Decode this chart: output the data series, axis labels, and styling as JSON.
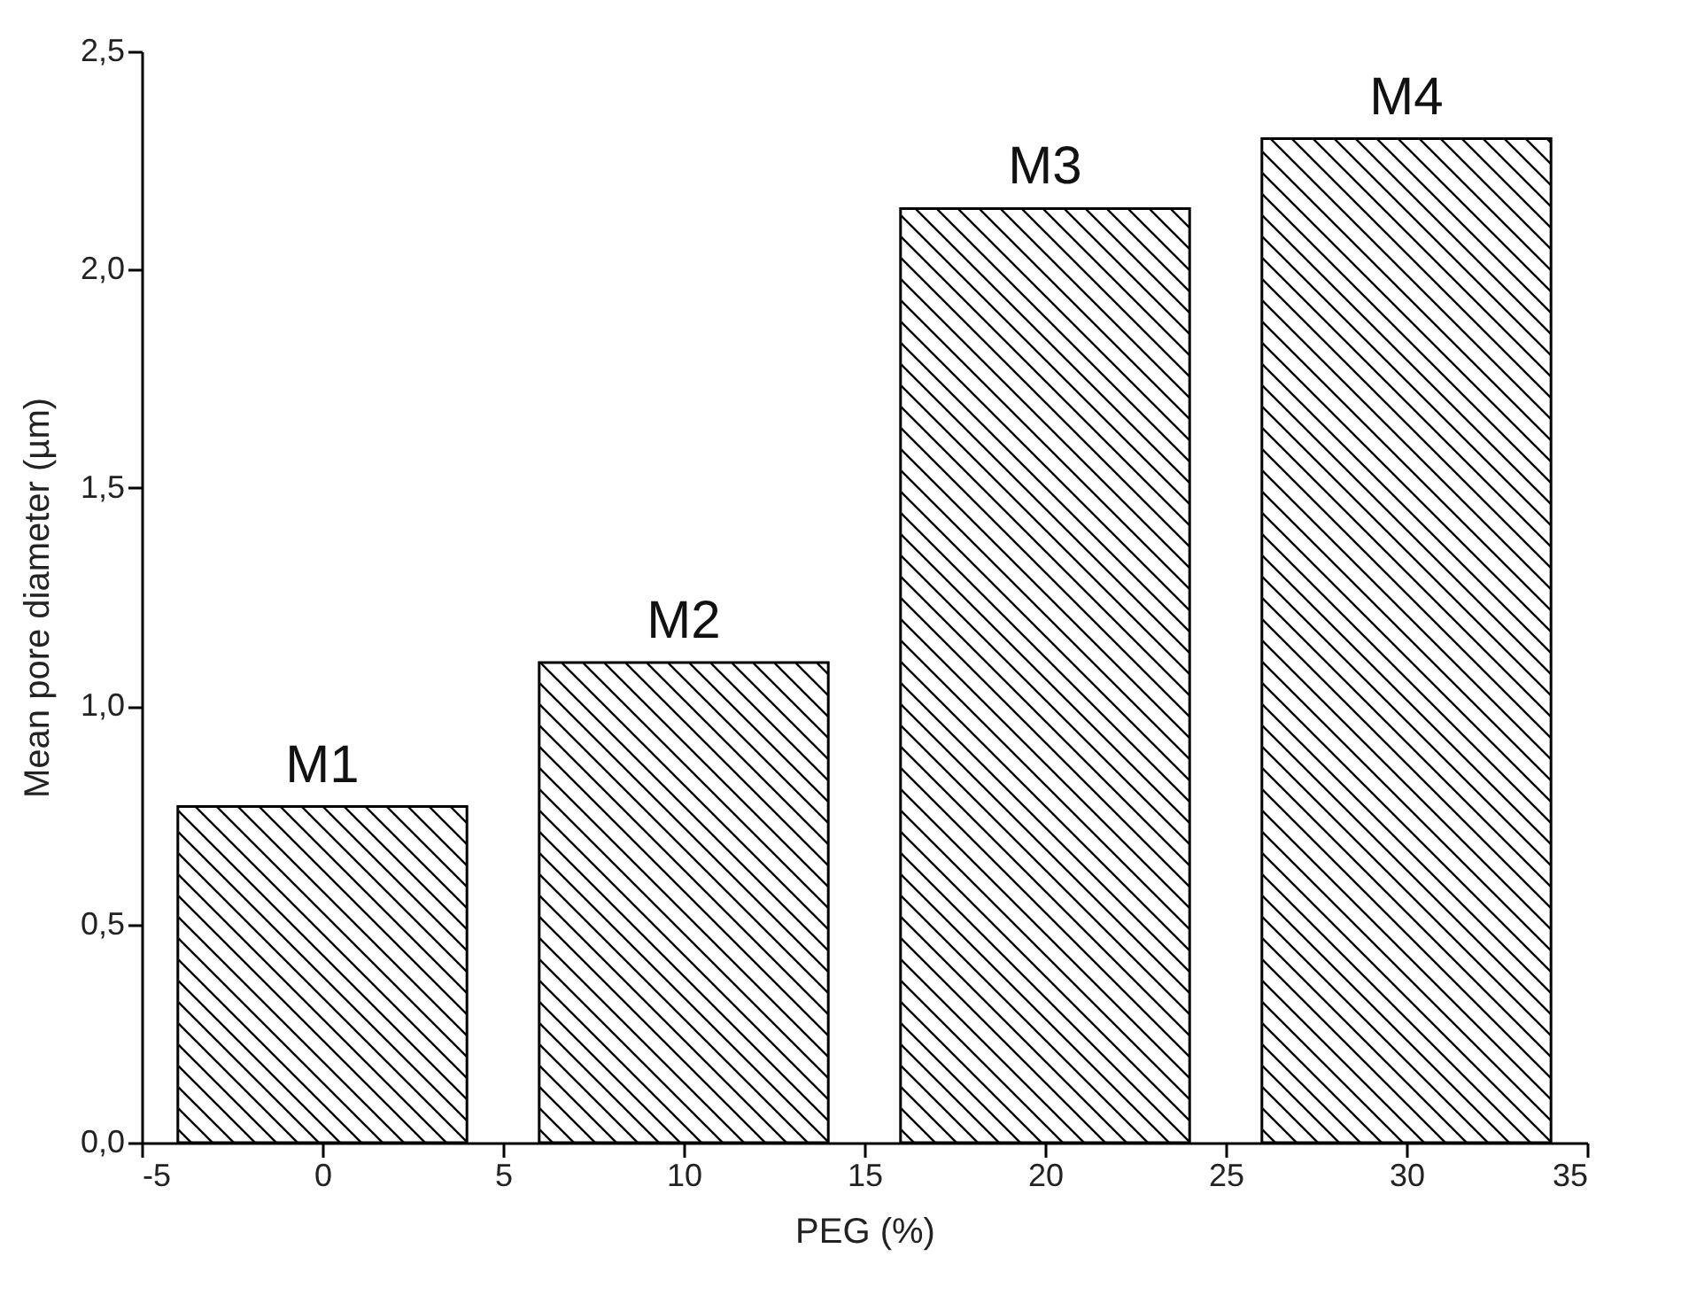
{
  "chart_data": {
    "type": "bar",
    "xlabel": "PEG (%)",
    "ylabel": "Mean pore diameter (µm)",
    "x": [
      0,
      10,
      20,
      30
    ],
    "values": [
      0.77,
      1.1,
      2.14,
      2.3
    ],
    "color": "#000000",
    "xlim": [
      -5,
      35
    ],
    "xticks": [
      -5,
      0,
      5,
      10,
      15,
      20,
      25,
      30,
      35
    ],
    "ylim": [
      0,
      2.5
    ],
    "yticks": [
      {
        "value": 0,
        "label": "0,0"
      },
      {
        "value": 0.5,
        "label": "0,5"
      },
      {
        "value": 1,
        "label": "1,0"
      },
      {
        "value": 1.5,
        "label": "1,5"
      },
      {
        "value": 2,
        "label": "2,0"
      },
      {
        "value": 2.5,
        "label": "2,5"
      }
    ],
    "annotations": [
      {
        "text": "M1",
        "x": 0,
        "y": 0.77
      },
      {
        "text": "M2",
        "x": 10,
        "y": 1.1
      },
      {
        "text": "M3",
        "x": 20,
        "y": 2.14
      },
      {
        "text": "M4",
        "x": 30,
        "y": 2.3
      }
    ],
    "grid": false
  }
}
